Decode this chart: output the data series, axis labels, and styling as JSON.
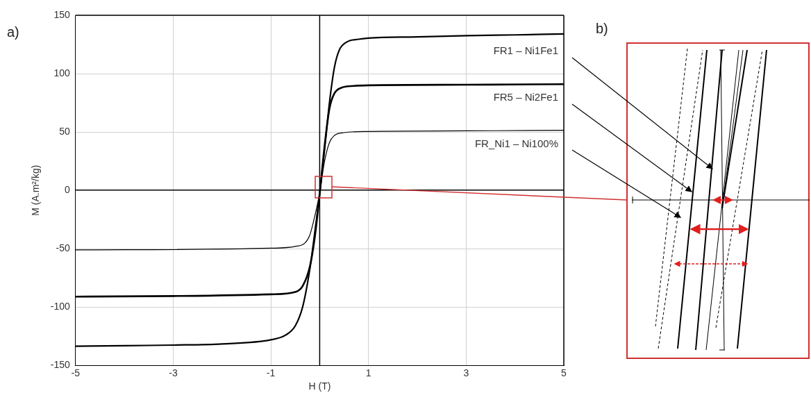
{
  "chart_data": {
    "type": "line",
    "xlabel": "H (T)",
    "ylabel": "M (A.m²/kg)",
    "xlim": [
      -5,
      5
    ],
    "xticks": [
      -5,
      -3,
      -1,
      1,
      3,
      5
    ],
    "ylim": [
      -150,
      150
    ],
    "yticks": [
      -150,
      -100,
      -50,
      0,
      50,
      100,
      150
    ],
    "grid": true,
    "legend": false,
    "marker": "none",
    "line_style": "solid",
    "annotations": [
      "a)",
      "b)"
    ],
    "series": [
      {
        "name": "FR1 – Ni1Fe1",
        "color": "#000000",
        "x": [
          -5,
          -4,
          -3,
          -2,
          -1,
          -0.7,
          -0.5,
          -0.35,
          -0.2,
          -0.1,
          0,
          0.1,
          0.2,
          0.3,
          0.4,
          0.55,
          0.8,
          1,
          2,
          3,
          4,
          5
        ],
        "values": [
          -133.5,
          -133,
          -132.5,
          -131.5,
          -128,
          -124,
          -116,
          -100,
          -67,
          -36,
          -3,
          35,
          75,
          105,
          120,
          127,
          129.5,
          130.5,
          131.5,
          132.5,
          133.2,
          134
        ]
      },
      {
        "name": "FR5 – Ni2Fe1",
        "color": "#000000",
        "x": [
          -5,
          -3,
          -1,
          -0.5,
          -0.35,
          -0.2,
          -0.1,
          0,
          0.1,
          0.2,
          0.3,
          0.45,
          0.7,
          1,
          3,
          5
        ],
        "values": [
          -91,
          -90.5,
          -89,
          -87,
          -82,
          -65,
          -40,
          -3,
          38,
          70,
          83,
          88,
          89.5,
          90,
          90.5,
          91
        ]
      },
      {
        "name": "FR_Ni1 – Ni100%",
        "color": "#000000",
        "x": [
          -5,
          -1,
          -0.5,
          -0.3,
          -0.2,
          -0.1,
          0,
          0.1,
          0.2,
          0.3,
          0.5,
          1,
          3,
          5
        ],
        "values": [
          -51,
          -49.5,
          -48,
          -45,
          -38,
          -22,
          -2,
          25,
          41,
          47,
          49.5,
          50.5,
          51,
          51.5
        ]
      }
    ]
  }
}
